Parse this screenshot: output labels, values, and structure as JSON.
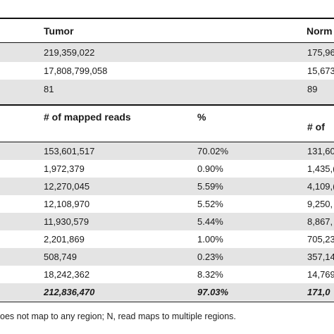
{
  "top_header": {
    "tumor": "Tumor",
    "normal": "Norm"
  },
  "summary_rows": [
    {
      "tumor": "219,359,022",
      "normal": "175,96"
    },
    {
      "tumor": "17,808,799,058",
      "normal": "15,673"
    },
    {
      "tumor": "81",
      "normal": "89"
    }
  ],
  "mapped_header": {
    "mapped_reads": "# of mapped reads",
    "percent": "%",
    "normal": "# of"
  },
  "mapped_rows": [
    {
      "mapped": "153,601,517",
      "percent": "70.02%",
      "normal": "131,60"
    },
    {
      "mapped": "1,972,379",
      "percent": "0.90%",
      "normal": "1,435,("
    },
    {
      "mapped": "12,270,045",
      "percent": "5.59%",
      "normal": "4,109,("
    },
    {
      "mapped": "12,108,970",
      "percent": "5.52%",
      "normal": "9,250,"
    },
    {
      "mapped": "11,930,579",
      "percent": "5.44%",
      "normal": "8,867,"
    },
    {
      "mapped": "2,201,869",
      "percent": "1.00%",
      "normal": "705,23"
    },
    {
      "mapped": "508,749",
      "percent": "0.23%",
      "normal": "357,14"
    },
    {
      "mapped": "18,242,362",
      "percent": "8.32%",
      "normal": "14,769"
    }
  ],
  "total_row": {
    "mapped": "212,836,470",
    "percent": "97.03%",
    "normal": "171,0"
  },
  "footnote": "oes not map to any region; N, read maps to multiple regions."
}
